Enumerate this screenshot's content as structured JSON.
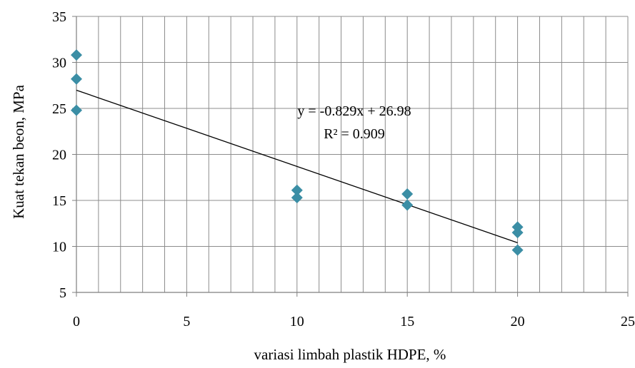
{
  "chart_data": {
    "type": "scatter",
    "title": "",
    "xlabel": "variasi limbah plastik HDPE, %",
    "ylabel": "Kuat tekan beon, MPa",
    "xlim": [
      0,
      25
    ],
    "ylim": [
      5,
      35
    ],
    "x_ticks": [
      0,
      5,
      10,
      15,
      20,
      25
    ],
    "y_ticks": [
      5,
      10,
      15,
      20,
      25,
      30,
      35
    ],
    "grid": true,
    "marker_color": "#3b8ea5",
    "series": [
      {
        "points": [
          {
            "x": 0,
            "y": 30.8
          },
          {
            "x": 0,
            "y": 28.2
          },
          {
            "x": 0,
            "y": 24.8
          },
          {
            "x": 10,
            "y": 16.1
          },
          {
            "x": 10,
            "y": 15.3
          },
          {
            "x": 15,
            "y": 15.7
          },
          {
            "x": 15,
            "y": 14.5
          },
          {
            "x": 20,
            "y": 12.1
          },
          {
            "x": 20,
            "y": 11.5
          },
          {
            "x": 20,
            "y": 9.6
          }
        ]
      }
    ],
    "trendline": {
      "slope": -0.829,
      "intercept": 26.98,
      "x_range": [
        0,
        20
      ],
      "equation": "y = -0.829x + 26.98",
      "r_squared": "R² = 0.909"
    }
  }
}
